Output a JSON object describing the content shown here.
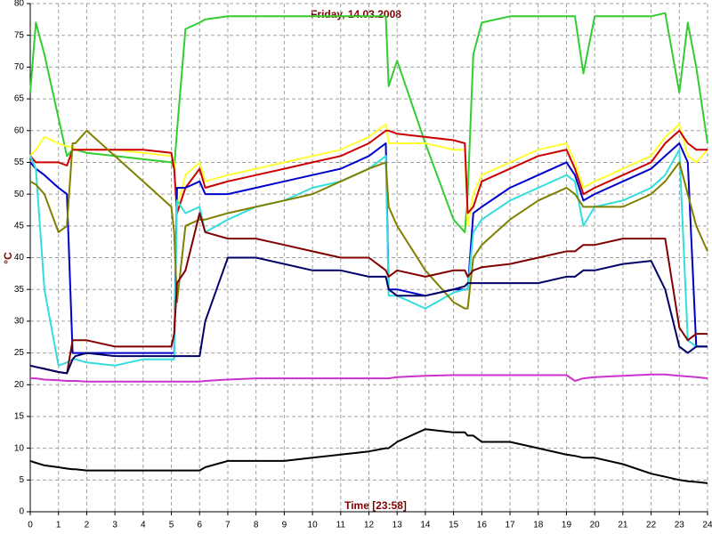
{
  "chart_data": {
    "type": "line",
    "title": "Friday, 14.03.2008",
    "x_label": "Time [23:58]",
    "y_label": "°C",
    "xlim": [
      0,
      24
    ],
    "xticks": [
      0,
      1,
      2,
      3,
      4,
      5,
      6,
      7,
      8,
      9,
      10,
      11,
      12,
      13,
      14,
      15,
      16,
      17,
      18,
      19,
      20,
      21,
      22,
      23,
      24
    ],
    "ylim": [
      0,
      80
    ],
    "yticks": [
      0,
      5,
      10,
      15,
      20,
      25,
      30,
      35,
      40,
      45,
      50,
      55,
      60,
      65,
      70,
      75,
      80
    ],
    "grid": true,
    "x": [
      0,
      0.2,
      0.5,
      1,
      1.3,
      1.5,
      1.6,
      2,
      3,
      4,
      5,
      5.1,
      5.2,
      5.5,
      6,
      6.2,
      7,
      8,
      9,
      10,
      11,
      12,
      12.6,
      12.7,
      13,
      14,
      15,
      15.4,
      15.5,
      15.7,
      16,
      17,
      18,
      19,
      19.3,
      19.6,
      20,
      21,
      22,
      22.5,
      23,
      23.3,
      23.6,
      24
    ],
    "series": [
      {
        "color": "#33cc33",
        "values": [
          66,
          77,
          72,
          62,
          56,
          57,
          57,
          56.5,
          56,
          55.5,
          55,
          54,
          60,
          76,
          77,
          77.5,
          78,
          78,
          78,
          78,
          78,
          78,
          78,
          67,
          71,
          58,
          46,
          44,
          50,
          72,
          77,
          78,
          78,
          78,
          78,
          69,
          78,
          78,
          78,
          78.5,
          66,
          77,
          70,
          58
        ]
      },
      {
        "color": "#ffff33",
        "values": [
          56,
          57,
          59,
          58,
          57.5,
          57.5,
          57,
          57,
          57,
          56.5,
          56,
          55,
          48,
          53,
          55,
          52,
          53,
          54,
          55,
          56,
          57,
          59,
          61,
          58,
          58,
          58,
          57,
          57,
          45,
          50,
          53,
          55,
          57,
          58,
          55,
          51,
          52,
          54,
          56,
          59,
          61,
          56,
          55,
          57
        ]
      },
      {
        "color": "#cc0000",
        "values": [
          56,
          55,
          55,
          55,
          54.5,
          57,
          57,
          57,
          57,
          57,
          56.5,
          54,
          47,
          51,
          54,
          51,
          52,
          53,
          54,
          55,
          56,
          58,
          60,
          60,
          59.5,
          59,
          58.5,
          58,
          47,
          48,
          52,
          54,
          56,
          57,
          54,
          50,
          51,
          53,
          55,
          58,
          60,
          58,
          57,
          57
        ]
      },
      {
        "color": "#0000cc",
        "values": [
          55,
          54,
          53,
          51,
          50,
          25,
          25,
          25,
          25,
          25,
          25,
          25,
          51,
          51,
          52,
          50,
          50,
          51,
          52,
          53,
          54,
          56,
          58,
          35,
          35,
          34,
          35,
          35,
          35,
          47,
          48,
          51,
          53,
          55,
          53,
          49,
          50,
          52,
          54,
          56,
          58,
          55,
          26,
          26
        ]
      },
      {
        "color": "#33dddd",
        "values": [
          56,
          54,
          35,
          23,
          23.5,
          24,
          24,
          23.5,
          23,
          24,
          24,
          24,
          49,
          47,
          48,
          44,
          46,
          48,
          49,
          51,
          52,
          54,
          56,
          34,
          34,
          32,
          34.5,
          35,
          35,
          44,
          46,
          49,
          51,
          53,
          52,
          45,
          48,
          49,
          51,
          53,
          57,
          27,
          26,
          26
        ]
      },
      {
        "color": "#808000",
        "values": [
          52,
          51.5,
          50,
          44,
          45,
          58,
          58,
          60,
          56,
          52,
          48,
          44,
          33,
          45,
          46,
          46,
          47,
          48,
          49,
          50,
          52,
          54,
          55,
          48,
          45,
          38,
          33,
          32,
          32,
          40,
          42,
          46,
          49,
          51,
          50,
          48,
          48,
          48,
          50,
          52,
          55,
          50,
          45,
          41
        ]
      },
      {
        "color": "#800000",
        "values": [
          23,
          22.8,
          22.5,
          22,
          21.8,
          27,
          27,
          27,
          26,
          26,
          26,
          28,
          36,
          38,
          47,
          44,
          43,
          43,
          42,
          41,
          40,
          40,
          38,
          37,
          38,
          37,
          38,
          38,
          37,
          38,
          38.5,
          39,
          40,
          41,
          41,
          42,
          42,
          43,
          43,
          43,
          29,
          27,
          28,
          28
        ]
      },
      {
        "color": "#000066",
        "values": [
          23,
          22.8,
          22.5,
          22,
          21.8,
          24,
          24.5,
          25,
          24.5,
          24.5,
          24.5,
          24.5,
          24.5,
          24.5,
          24.5,
          30,
          40,
          40,
          39,
          38,
          38,
          37,
          37,
          35,
          34,
          34,
          35,
          35.5,
          36,
          36,
          36,
          36,
          36,
          37,
          37,
          38,
          38,
          39,
          39.5,
          35,
          26,
          25,
          26,
          26
        ]
      },
      {
        "color": "#cc33cc",
        "values": [
          21,
          21,
          20.8,
          20.7,
          20.6,
          20.6,
          20.6,
          20.5,
          20.5,
          20.5,
          20.5,
          20.5,
          20.5,
          20.5,
          20.5,
          20.6,
          20.8,
          21,
          21,
          21,
          21,
          21,
          21,
          21,
          21.2,
          21.4,
          21.5,
          21.5,
          21.5,
          21.5,
          21.5,
          21.5,
          21.5,
          21.5,
          20.6,
          21,
          21.2,
          21.4,
          21.6,
          21.6,
          21.4,
          21.3,
          21.2,
          21
        ]
      },
      {
        "color": "#000000",
        "values": [
          8,
          7.7,
          7.3,
          7,
          6.8,
          6.7,
          6.7,
          6.5,
          6.5,
          6.5,
          6.5,
          6.5,
          6.5,
          6.5,
          6.5,
          7,
          8,
          8,
          8,
          8.5,
          9,
          9.5,
          10,
          10,
          11,
          13,
          12.5,
          12.5,
          12,
          12,
          11,
          11,
          10,
          9,
          8.8,
          8.5,
          8.5,
          7.5,
          6,
          5.5,
          5,
          4.8,
          4.7,
          4.5
        ]
      }
    ]
  }
}
